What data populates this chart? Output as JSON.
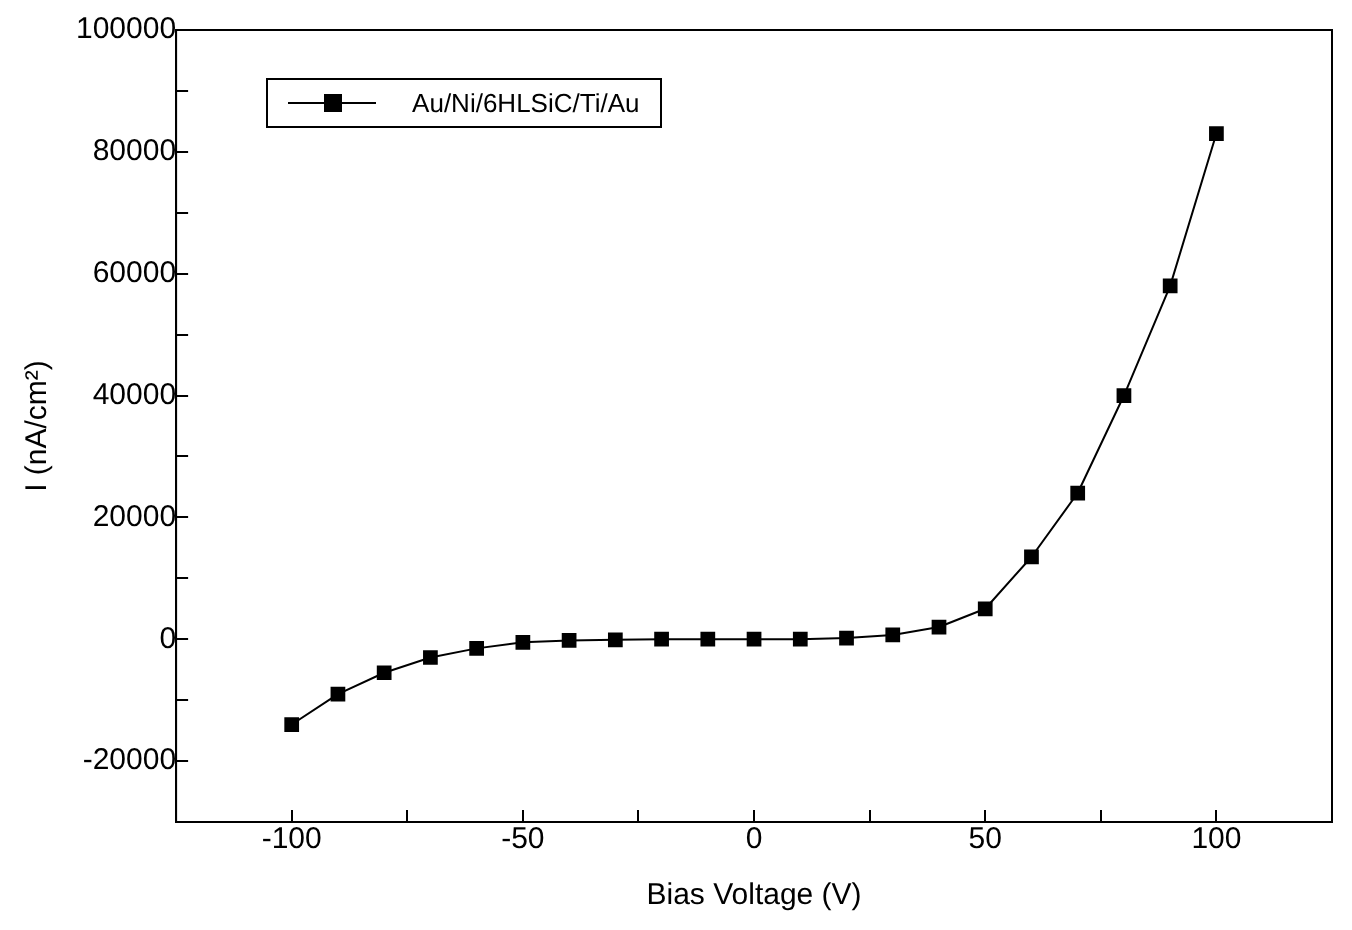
{
  "chart_data": {
    "type": "line",
    "xlabel": "Bias Voltage (V)",
    "ylabel": "I (nA/cm²)",
    "x": [
      -100,
      -90,
      -80,
      -70,
      -60,
      -50,
      -40,
      -30,
      -20,
      -10,
      0,
      10,
      20,
      30,
      40,
      50,
      60,
      70,
      80,
      90,
      100
    ],
    "series": [
      {
        "name": "Au/Ni/6HLSiC/Ti/Au",
        "color": "#000000",
        "values": [
          -14000,
          -9000,
          -5500,
          -3000,
          -1500,
          -500,
          -200,
          -100,
          0,
          0,
          0,
          0,
          200,
          700,
          2000,
          5000,
          13500,
          24000,
          40000,
          58000,
          83000
        ]
      }
    ],
    "xlim": [
      -125,
      125
    ],
    "xticks": [
      -100,
      {
        "value": -75,
        "label": null
      },
      -50,
      {
        "value": -25,
        "label": null
      },
      0,
      {
        "value": 25,
        "label": null
      },
      50,
      {
        "value": 75,
        "label": null
      },
      100
    ],
    "ylim": [
      -30000,
      100000
    ],
    "yticks": [
      {
        "value": -30000,
        "label": null
      },
      -20000,
      {
        "value": -10000,
        "label": null
      },
      0,
      {
        "value": 10000,
        "label": null
      },
      20000,
      {
        "value": 30000,
        "label": null
      },
      40000,
      {
        "value": 50000,
        "label": null
      },
      60000,
      {
        "value": 70000,
        "label": null
      },
      80000,
      {
        "value": 90000,
        "label": null
      },
      100000
    ],
    "grid": false,
    "legend": "top left",
    "marker": "square",
    "line_style": "solid"
  }
}
